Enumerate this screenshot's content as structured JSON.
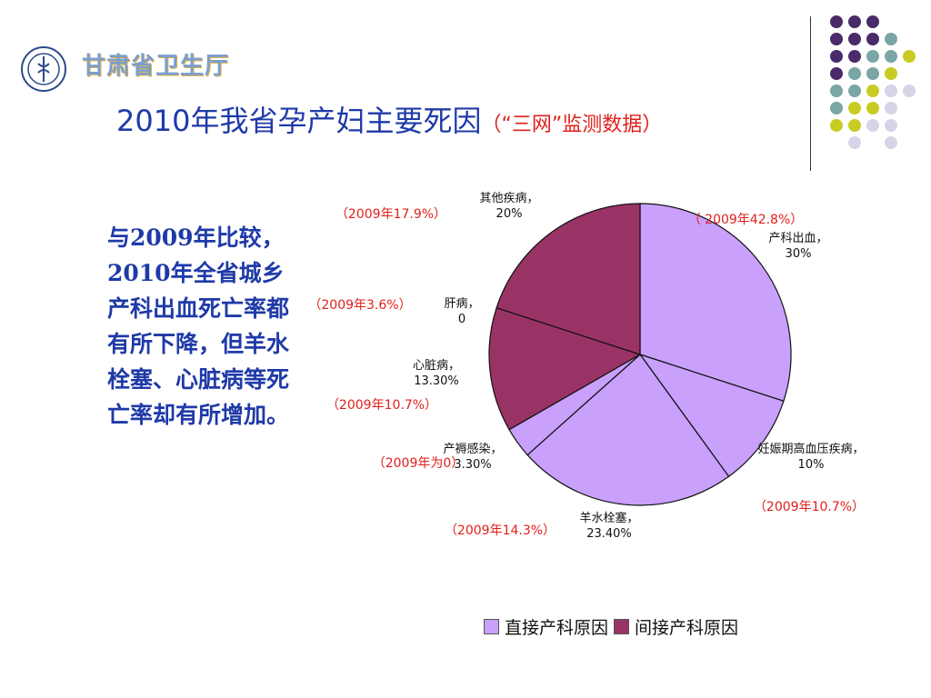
{
  "header": {
    "org_name": "甘肃省卫生厅",
    "title_main": "2010年我省孕产妇主要死因",
    "title_sub": "（“三网”监测数据）"
  },
  "side_text": "与2009年比较，2010年全省城乡产科出血死亡率都有所下降，但羊水栓塞、心脏病等死亡率却有所增加。",
  "colors": {
    "direct": "#c9a0fc",
    "indirect": "#993366",
    "dots_purple": "#4a2a6a",
    "dots_teal": "#7aa6a6",
    "dots_yellow": "#c8cc22",
    "dots_lavender": "#d8d4e8",
    "prev_text": "#e0201c"
  },
  "chart_data": {
    "type": "pie",
    "title": "",
    "slices": [
      {
        "name": "产科出血",
        "value": 30,
        "label": "30%",
        "category": "直接产科原因",
        "prev": "（ 2009年42.8%）"
      },
      {
        "name": "妊娠期高血压疾病",
        "value": 10,
        "label": "10%",
        "category": "直接产科原因",
        "prev": "（2009年10.7%）"
      },
      {
        "name": "羊水栓塞",
        "value": 23.4,
        "label": "23.40%",
        "category": "直接产科原因",
        "prev": "（2009年14.3%）"
      },
      {
        "name": "产褥感染",
        "value": 3.3,
        "label": "3.30%",
        "category": "直接产科原因",
        "prev": "（2009年为0）"
      },
      {
        "name": "心脏病",
        "value": 13.3,
        "label": "13.30%",
        "category": "间接产科原因",
        "prev": "（2009年10.7%）"
      },
      {
        "name": "肝病",
        "value": 0,
        "label": "0",
        "category": "间接产科原因",
        "prev": "（2009年3.6%）"
      },
      {
        "name": "其他疾病",
        "value": 20,
        "label": "20%",
        "category": "间接产科原因",
        "prev": "（2009年17.9%）"
      }
    ],
    "legend": [
      "直接产科原因",
      "间接产科原因"
    ],
    "legend_position": "bottom"
  }
}
